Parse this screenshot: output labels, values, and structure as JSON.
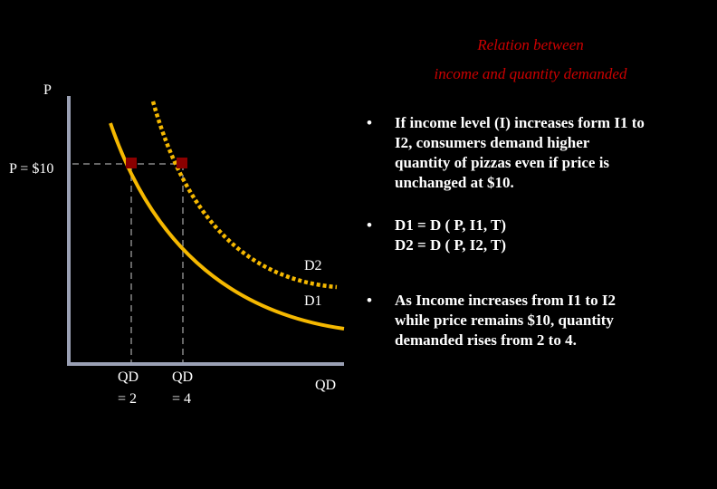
{
  "title": {
    "line1": "Relation between",
    "line2": "income and quantity demanded",
    "color": "#cc0000"
  },
  "graph": {
    "y_axis_label": "P",
    "x_axis_label": "QD",
    "price_label": "P = $10",
    "qd_labels": [
      {
        "line1": "QD",
        "line2": "= 2"
      },
      {
        "line1": "QD",
        "line2": "= 4"
      }
    ],
    "curves": [
      {
        "name": "D1",
        "style": "solid",
        "color": "#f5b800"
      },
      {
        "name": "D2",
        "style": "dotted",
        "color": "#f5b800"
      }
    ],
    "point_color": "#8b0000",
    "guide_color": "#888888",
    "axis_color": "#9aa0b4"
  },
  "bullets": [
    {
      "marker": "•",
      "lines": [
        "If income level (I) increases form I1 to",
        "I2, consumers demand higher",
        "quantity of pizzas even if price is",
        "unchanged at $10."
      ]
    },
    {
      "marker": "•",
      "lines": [
        "D1 = D ( P, I1, T)",
        "D2 = D ( P, I2, T)"
      ]
    },
    {
      "marker": "•",
      "lines": [
        "As Income increases from I1 to I2",
        "while price remains $10, quantity",
        "demanded rises from 2 to 4."
      ]
    }
  ]
}
